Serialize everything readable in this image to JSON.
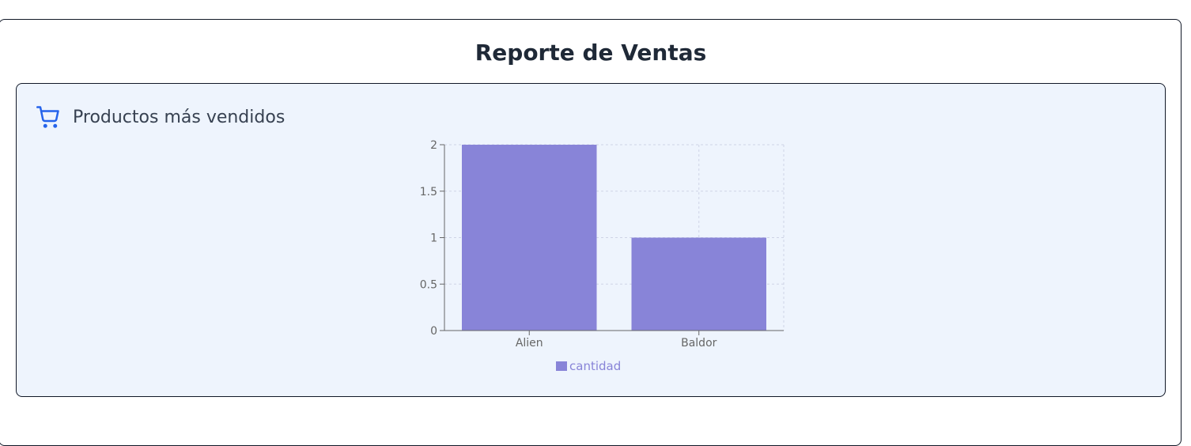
{
  "page": {
    "title": "Reporte de Ventas"
  },
  "section": {
    "title": "Productos más vendidos",
    "icon": "shopping-cart-icon"
  },
  "colors": {
    "bar": "#8884d8",
    "icon": "#2563eb",
    "panel_bg": "#eef4fd"
  },
  "chart_data": {
    "type": "bar",
    "categories": [
      "Alien",
      "Baldor"
    ],
    "series": [
      {
        "name": "cantidad",
        "values": [
          2,
          1
        ]
      }
    ],
    "ylim": [
      0,
      2
    ],
    "yticks": [
      0,
      0.5,
      1,
      1.5,
      2
    ],
    "ytick_labels": [
      "0",
      "0.5",
      "1",
      "1.5",
      "2"
    ],
    "grid": true,
    "legend": "bottom-center"
  }
}
